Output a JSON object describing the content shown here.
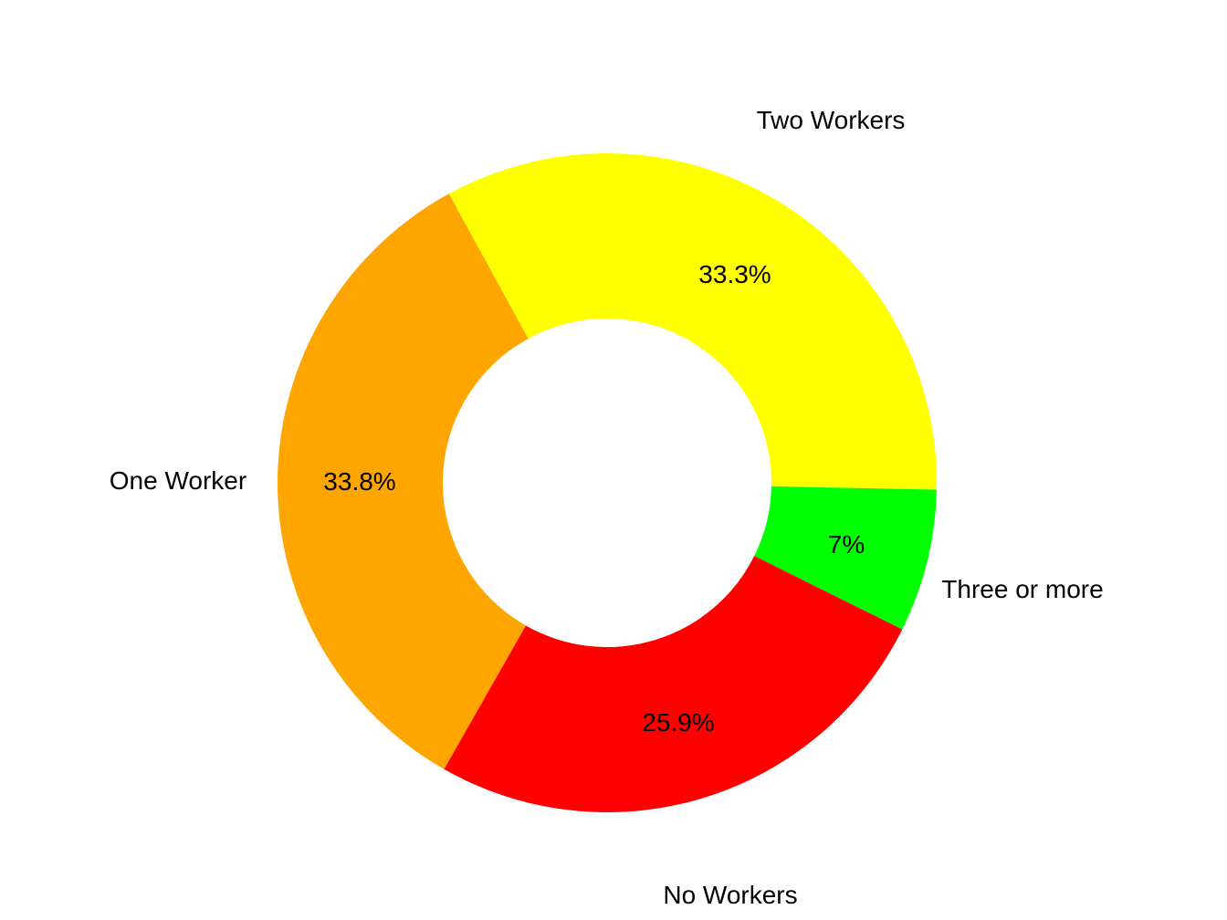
{
  "chart_data": {
    "type": "pie",
    "subtype": "donut",
    "title": "",
    "categories": [
      "Two Workers",
      "One Worker",
      "No Workers",
      "Three or more"
    ],
    "values": [
      33.3,
      33.8,
      25.9,
      7.0
    ],
    "value_labels": [
      "33.3%",
      "33.8%",
      "25.9%",
      "7%"
    ],
    "colors": [
      "#FFFF00",
      "#FFA500",
      "#FF0000",
      "#00FF00"
    ],
    "legend": "none"
  },
  "labels": {
    "two": "Two Workers",
    "one": "One Worker",
    "none": "No Workers",
    "three": "Three or more",
    "pct_two": "33.3%",
    "pct_one": "33.8%",
    "pct_none": "25.9%",
    "pct_three": "7%"
  }
}
